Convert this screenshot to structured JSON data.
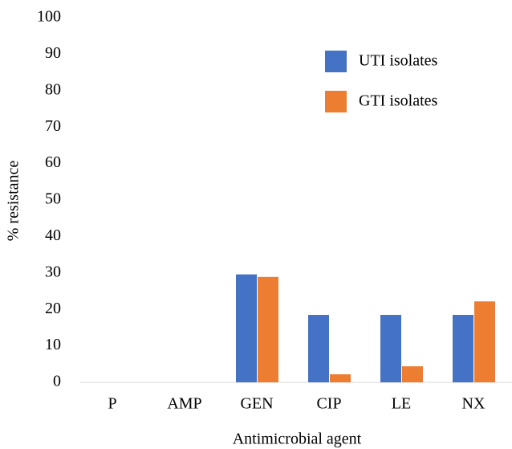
{
  "chart_data": {
    "type": "bar",
    "categories": [
      "P",
      "AMP",
      "GEN",
      "CIP",
      "LE",
      "NX"
    ],
    "series": [
      {
        "name": "UTI isolates",
        "color": "#4472c4",
        "values": [
          0,
          0,
          29.6,
          18.5,
          18.5,
          18.5
        ]
      },
      {
        "name": "GTI isolates",
        "color": "#ed7d31",
        "values": [
          0,
          0,
          28.9,
          2.2,
          4.4,
          22.2
        ]
      }
    ],
    "ylim": [
      0,
      100
    ],
    "yticks": [
      0,
      10,
      20,
      30,
      40,
      50,
      60,
      70,
      80,
      90,
      100
    ],
    "ylabel": "% resistance",
    "xlabel": "Antimicrobial agent",
    "grid": false,
    "legend": "upper right"
  }
}
